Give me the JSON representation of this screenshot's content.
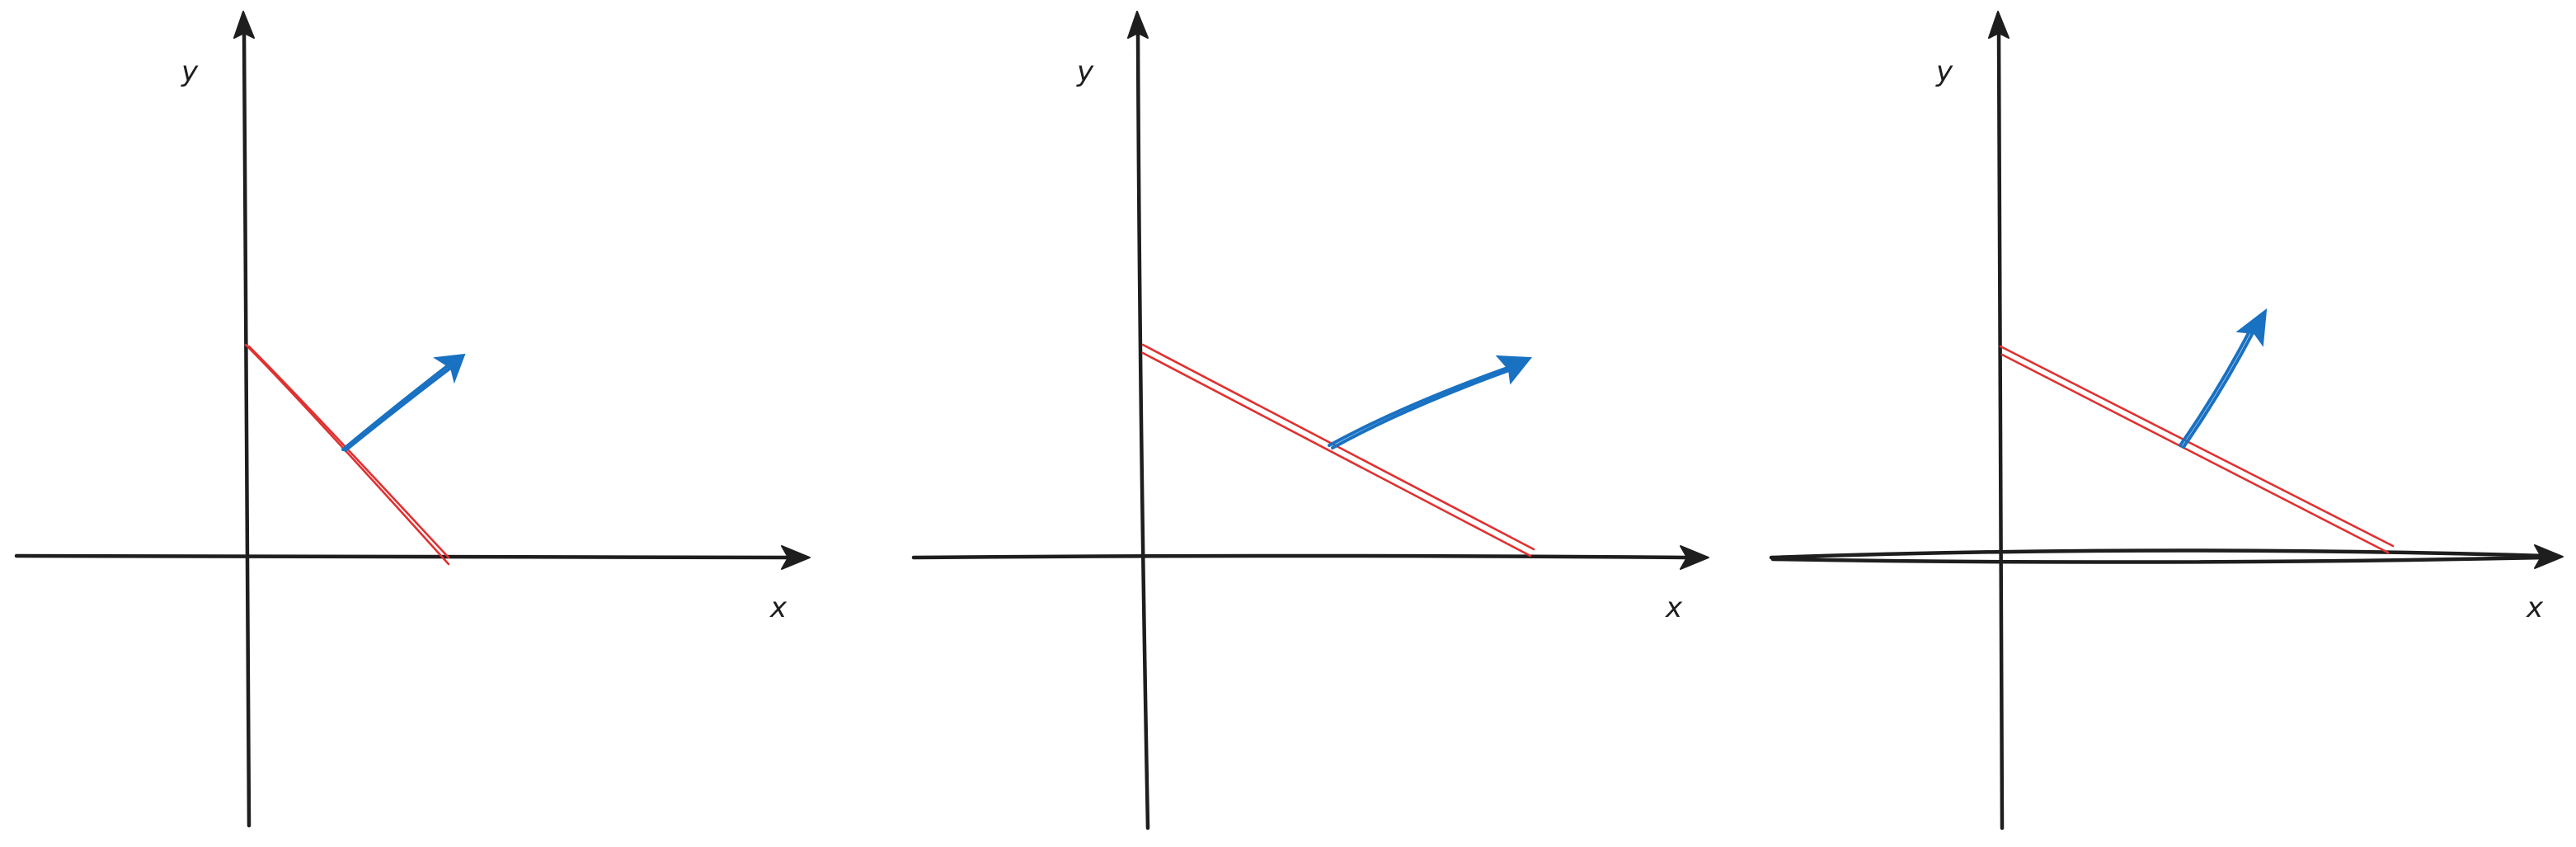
{
  "colors": {
    "axis": "#1e1e1e",
    "line": "#e03131",
    "vector": "#1971c2",
    "background": "#ffffff"
  },
  "panels": [
    {
      "x_label": "x",
      "y_label": "y"
    },
    {
      "x_label": "x",
      "y_label": "y"
    },
    {
      "x_label": "x",
      "y_label": "y"
    }
  ]
}
